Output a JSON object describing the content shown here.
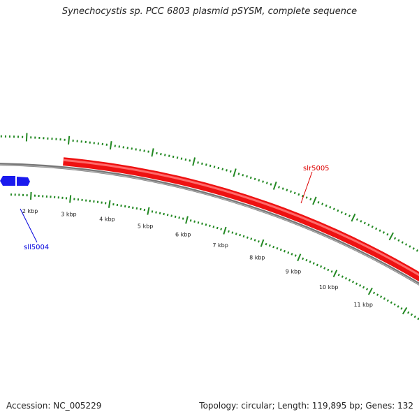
{
  "title": "Synechocystis sp. PCC 6803 plasmid pSYSM, complete sequence",
  "footer": {
    "accession": "Accession: NC_005229",
    "summary": "Topology: circular; Length: 119,895 bp; Genes: 132"
  },
  "scale": {
    "unit": "kbp",
    "tick_labels": [
      "2 kbp",
      "3 kbp",
      "4 kbp",
      "5 kbp",
      "6 kbp",
      "7 kbp",
      "8 kbp",
      "9 kbp",
      "10 kbp",
      "11 kbp"
    ]
  },
  "genes": [
    {
      "name": "slr5005",
      "strand": "forward",
      "color": "#dd0000"
    },
    {
      "name": "sll5004",
      "strand": "reverse",
      "color": "#0000dd"
    }
  ],
  "colors": {
    "backbone": "#777777",
    "ticks": "#228822",
    "forward_gene": "#ee1111",
    "reverse_gene": "#1a1aee"
  }
}
